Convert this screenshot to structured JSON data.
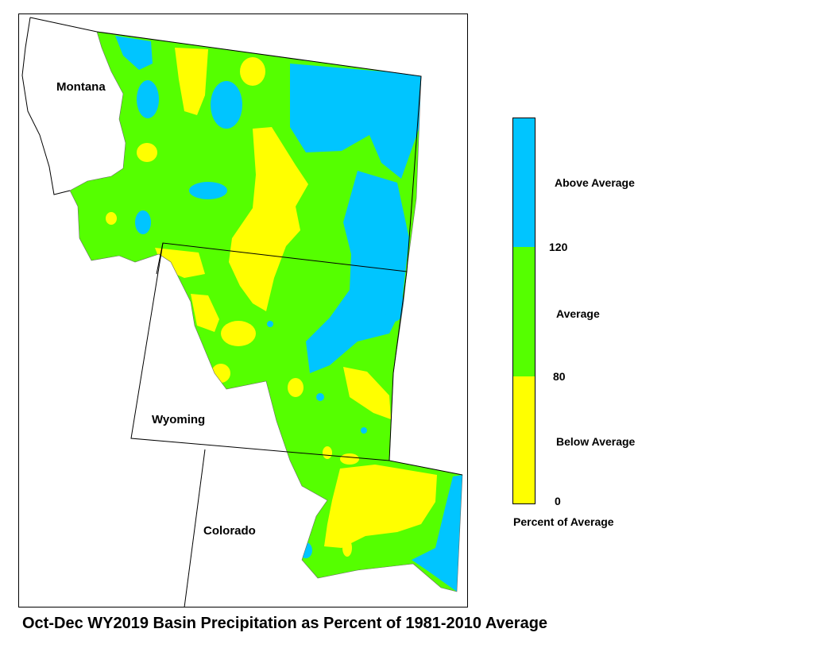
{
  "title": "Oct-Dec WY2019 Basin Precipitation as Percent of 1981-2010 Average",
  "states": [
    "Montana",
    "Wyoming",
    "Colorado"
  ],
  "legend": {
    "title": "Percent of Average",
    "categories": [
      {
        "label": "Above Average",
        "color": "#00c5ff"
      },
      {
        "label": "Average",
        "color": "#55ff00"
      },
      {
        "label": "Below Average",
        "color": "#ffff00"
      }
    ],
    "breaks": [
      "120",
      "80",
      "0"
    ]
  },
  "colors": {
    "above": "#00c5ff",
    "average": "#55ff00",
    "below": "#ffff00"
  }
}
